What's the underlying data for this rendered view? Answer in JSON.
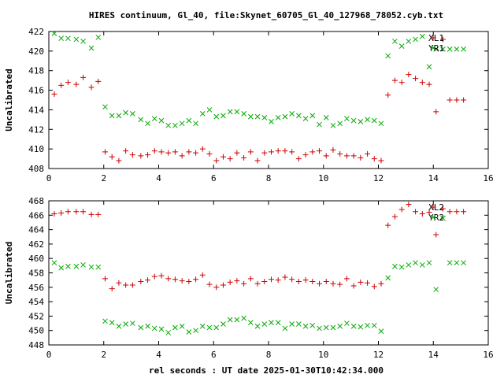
{
  "title": "HIRES continuum, Gl_40, file:Skynet_60705_Gl_40_127968_78052.cyb.txt",
  "xlabel": "rel seconds : UT date 2025-01-30T10:42:34.000",
  "chart_data": [
    {
      "type": "scatter",
      "ylabel": "Uncalibrated",
      "xlim": [
        0,
        16
      ],
      "ylim": [
        408,
        422
      ],
      "xticks": [
        "0",
        "2",
        "4",
        "6",
        "8",
        "10",
        "12",
        "14",
        "16"
      ],
      "yticks": [
        "408",
        "410",
        "412",
        "414",
        "416",
        "418",
        "420",
        "422"
      ],
      "series": [
        {
          "name": "XL1",
          "color": "#cc0000",
          "marker": "plus",
          "x": [
            0.2,
            0.45,
            0.7,
            1.0,
            1.25,
            1.55,
            1.8,
            2.05,
            2.3,
            2.55,
            2.8,
            3.05,
            3.35,
            3.6,
            3.85,
            4.1,
            4.35,
            4.6,
            4.85,
            5.1,
            5.35,
            5.6,
            5.85,
            6.1,
            6.35,
            6.6,
            6.85,
            7.1,
            7.35,
            7.6,
            7.85,
            8.1,
            8.35,
            8.6,
            8.85,
            9.1,
            9.35,
            9.6,
            9.85,
            10.1,
            10.35,
            10.6,
            10.85,
            11.1,
            11.35,
            11.6,
            11.85,
            12.1,
            12.35,
            12.6,
            12.85,
            13.1,
            13.35,
            13.6,
            13.85,
            14.1,
            14.35,
            14.6,
            14.85,
            15.1
          ],
          "y": [
            415.6,
            416.5,
            416.8,
            416.6,
            417.3,
            416.3,
            416.9,
            409.7,
            409.2,
            408.8,
            409.8,
            409.4,
            409.3,
            409.4,
            409.8,
            409.7,
            409.6,
            409.7,
            409.3,
            409.7,
            409.6,
            410.0,
            409.5,
            408.8,
            409.2,
            409.0,
            409.6,
            409.1,
            409.7,
            408.8,
            409.6,
            409.7,
            409.8,
            409.8,
            409.7,
            409.0,
            409.4,
            409.7,
            409.8,
            409.3,
            409.9,
            409.5,
            409.3,
            409.3,
            409.1,
            409.5,
            409.0,
            408.8,
            415.5,
            417.0,
            416.8,
            417.6,
            417.2,
            416.8,
            416.6,
            413.8,
            421.2,
            415.0,
            415.0,
            415.0
          ]
        },
        {
          "name": "YR1",
          "color": "#00aa00",
          "marker": "cross",
          "x": [
            0.2,
            0.45,
            0.7,
            1.0,
            1.25,
            1.55,
            1.8,
            2.05,
            2.3,
            2.55,
            2.8,
            3.05,
            3.35,
            3.6,
            3.85,
            4.1,
            4.35,
            4.6,
            4.85,
            5.1,
            5.35,
            5.6,
            5.85,
            6.1,
            6.35,
            6.6,
            6.85,
            7.1,
            7.35,
            7.6,
            7.85,
            8.1,
            8.35,
            8.6,
            8.85,
            9.1,
            9.35,
            9.6,
            9.85,
            10.1,
            10.35,
            10.6,
            10.85,
            11.1,
            11.35,
            11.6,
            11.85,
            12.1,
            12.35,
            12.6,
            12.85,
            13.1,
            13.35,
            13.6,
            13.85,
            14.1,
            14.35,
            14.6,
            14.85,
            15.1
          ],
          "y": [
            421.8,
            421.3,
            421.3,
            421.2,
            421.0,
            420.3,
            421.4,
            414.3,
            413.4,
            413.4,
            413.7,
            413.6,
            413.0,
            412.6,
            413.1,
            412.9,
            412.4,
            412.4,
            412.6,
            412.9,
            412.6,
            413.6,
            414.0,
            413.3,
            413.4,
            413.8,
            413.8,
            413.6,
            413.3,
            413.3,
            413.2,
            412.8,
            413.2,
            413.3,
            413.6,
            413.4,
            413.1,
            413.4,
            412.5,
            413.2,
            412.4,
            412.6,
            413.1,
            412.9,
            412.8,
            413.0,
            412.9,
            412.6,
            419.5,
            421.0,
            420.5,
            421.0,
            421.2,
            421.5,
            418.4,
            420.2,
            420.2,
            420.2,
            420.2,
            420.2
          ]
        }
      ]
    },
    {
      "type": "scatter",
      "ylabel": "Uncalibrated",
      "xlim": [
        0,
        16
      ],
      "ylim": [
        448,
        468
      ],
      "xticks": [
        "0",
        "2",
        "4",
        "6",
        "8",
        "10",
        "12",
        "14",
        "16"
      ],
      "yticks": [
        "448",
        "450",
        "452",
        "454",
        "456",
        "458",
        "460",
        "462",
        "464",
        "466",
        "468"
      ],
      "series": [
        {
          "name": "XL2",
          "color": "#cc0000",
          "marker": "plus",
          "x": [
            0.2,
            0.45,
            0.7,
            1.0,
            1.25,
            1.55,
            1.8,
            2.05,
            2.3,
            2.55,
            2.8,
            3.05,
            3.35,
            3.6,
            3.85,
            4.1,
            4.35,
            4.6,
            4.85,
            5.1,
            5.35,
            5.6,
            5.85,
            6.1,
            6.35,
            6.6,
            6.85,
            7.1,
            7.35,
            7.6,
            7.85,
            8.1,
            8.35,
            8.6,
            8.85,
            9.1,
            9.35,
            9.6,
            9.85,
            10.1,
            10.35,
            10.6,
            10.85,
            11.1,
            11.35,
            11.6,
            11.85,
            12.1,
            12.35,
            12.6,
            12.85,
            13.1,
            13.35,
            13.6,
            13.85,
            14.1,
            14.35,
            14.6,
            14.85,
            15.1
          ],
          "y": [
            466.2,
            466.3,
            466.5,
            466.5,
            466.5,
            466.1,
            466.1,
            457.2,
            455.8,
            456.6,
            456.3,
            456.3,
            456.8,
            457.0,
            457.5,
            457.6,
            457.2,
            457.1,
            456.9,
            456.8,
            457.1,
            457.7,
            456.4,
            456.0,
            456.3,
            456.7,
            456.9,
            456.5,
            457.2,
            456.5,
            456.8,
            457.1,
            457.0,
            457.4,
            457.1,
            456.8,
            457.0,
            456.8,
            456.5,
            456.8,
            456.5,
            456.4,
            457.2,
            456.2,
            456.7,
            456.6,
            456.1,
            456.5,
            464.6,
            465.8,
            466.8,
            467.5,
            466.5,
            466.2,
            466.4,
            463.3,
            466.9,
            466.5,
            466.5,
            466.5
          ]
        },
        {
          "name": "YR2",
          "color": "#00aa00",
          "marker": "cross",
          "x": [
            0.2,
            0.45,
            0.7,
            1.0,
            1.25,
            1.55,
            1.8,
            2.05,
            2.3,
            2.55,
            2.8,
            3.05,
            3.35,
            3.6,
            3.85,
            4.1,
            4.35,
            4.6,
            4.85,
            5.1,
            5.35,
            5.6,
            5.85,
            6.1,
            6.35,
            6.6,
            6.85,
            7.1,
            7.35,
            7.6,
            7.85,
            8.1,
            8.35,
            8.6,
            8.85,
            9.1,
            9.35,
            9.6,
            9.85,
            10.1,
            10.35,
            10.6,
            10.85,
            11.1,
            11.35,
            11.6,
            11.85,
            12.1,
            12.35,
            12.6,
            12.85,
            13.1,
            13.35,
            13.6,
            13.85,
            14.1,
            14.35,
            14.6,
            14.85,
            15.1
          ],
          "y": [
            459.4,
            458.7,
            458.9,
            458.9,
            459.1,
            458.8,
            458.8,
            451.3,
            451.1,
            450.6,
            450.9,
            451.0,
            450.4,
            450.6,
            450.3,
            450.2,
            449.7,
            450.4,
            450.6,
            449.8,
            450.0,
            450.6,
            450.4,
            450.4,
            450.9,
            451.5,
            451.5,
            451.7,
            451.1,
            450.6,
            450.9,
            451.1,
            451.1,
            450.3,
            450.9,
            450.9,
            450.6,
            450.7,
            450.3,
            450.4,
            450.4,
            450.6,
            451.0,
            450.6,
            450.5,
            450.7,
            450.7,
            449.9,
            457.3,
            458.9,
            458.8,
            459.1,
            459.4,
            459.1,
            459.4,
            455.7,
            465.6,
            459.4,
            459.4,
            459.4
          ]
        }
      ]
    }
  ]
}
